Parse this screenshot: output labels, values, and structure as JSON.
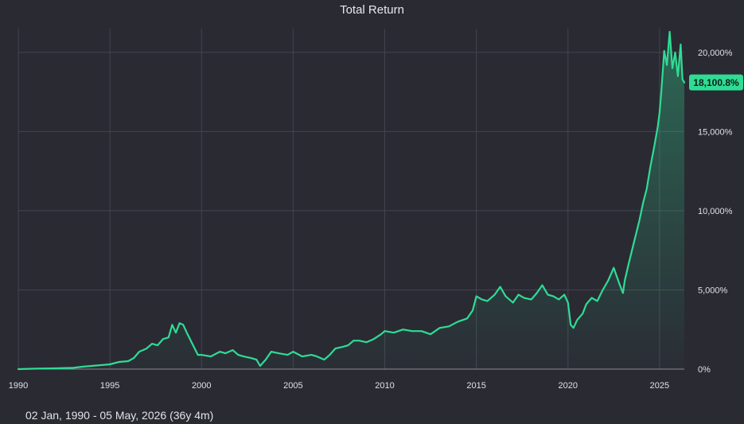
{
  "chart_data": {
    "type": "area",
    "title": "Total Return",
    "xlabel": "",
    "ylabel": "",
    "x_ticks": [
      "1990",
      "1995",
      "2000",
      "2005",
      "2010",
      "2015",
      "2020",
      "2025"
    ],
    "y_ticks": [
      "0%",
      "5,000%",
      "10,000%",
      "15,000%",
      "20,000%"
    ],
    "xlim": [
      1990.0,
      2026.35
    ],
    "ylim": [
      0,
      21500
    ],
    "grid": true,
    "last_value_label": "18,100.8%",
    "line_color": "#2fdc94",
    "series": [
      {
        "x": [
          1990.0,
          1991.0,
          1992.0,
          1993.0,
          1993.5,
          1994.0,
          1995.0,
          1995.5,
          1996.0,
          1996.3,
          1996.6,
          1997.0,
          1997.3,
          1997.6,
          1997.9,
          1998.2,
          1998.4,
          1998.6,
          1998.8,
          1999.0,
          1999.2,
          1999.5,
          1999.8,
          2000.0,
          2000.5,
          2001.0,
          2001.3,
          2001.7,
          2002.0,
          2002.3,
          2002.7,
          2003.0,
          2003.2,
          2003.5,
          2003.8,
          2004.2,
          2004.7,
          2005.0,
          2005.5,
          2006.0,
          2006.3,
          2006.7,
          2007.0,
          2007.3,
          2007.7,
          2008.0,
          2008.3,
          2008.6,
          2009.0,
          2009.4,
          2009.8,
          2010.0,
          2010.5,
          2011.0,
          2011.5,
          2012.0,
          2012.5,
          2013.0,
          2013.5,
          2014.0,
          2014.5,
          2014.8,
          2015.0,
          2015.3,
          2015.6,
          2016.0,
          2016.3,
          2016.6,
          2017.0,
          2017.3,
          2017.6,
          2018.0,
          2018.3,
          2018.6,
          2018.9,
          2019.2,
          2019.5,
          2019.8,
          2020.0,
          2020.15,
          2020.3,
          2020.5,
          2020.8,
          2021.0,
          2021.3,
          2021.6,
          2021.9,
          2022.2,
          2022.5,
          2022.8,
          2023.0,
          2023.1,
          2023.3,
          2023.6,
          2023.9,
          2024.1,
          2024.3,
          2024.5,
          2024.7,
          2024.9,
          2025.0,
          2025.1,
          2025.25,
          2025.4,
          2025.55,
          2025.7,
          2025.85,
          2026.0,
          2026.15,
          2026.25,
          2026.35
        ],
        "values": [
          0,
          30,
          50,
          80,
          150,
          200,
          300,
          450,
          500,
          700,
          1100,
          1300,
          1600,
          1500,
          1900,
          2000,
          2800,
          2300,
          2900,
          2800,
          2300,
          1600,
          900,
          900,
          800,
          1100,
          1000,
          1200,
          900,
          800,
          700,
          600,
          200,
          600,
          1100,
          1000,
          900,
          1100,
          800,
          900,
          800,
          600,
          900,
          1300,
          1400,
          1500,
          1800,
          1800,
          1700,
          1900,
          2200,
          2400,
          2300,
          2500,
          2400,
          2400,
          2200,
          2600,
          2700,
          3000,
          3200,
          3700,
          4600,
          4400,
          4300,
          4700,
          5200,
          4600,
          4200,
          4700,
          4500,
          4400,
          4800,
          5300,
          4700,
          4600,
          4400,
          4700,
          4200,
          2800,
          2600,
          3100,
          3500,
          4100,
          4500,
          4300,
          5000,
          5600,
          6400,
          5400,
          4800,
          5600,
          6600,
          8000,
          9400,
          10500,
          11400,
          12800,
          14000,
          15300,
          16200,
          17600,
          20100,
          19200,
          21300,
          19000,
          20000,
          18500,
          20500,
          18300,
          18100
        ]
      }
    ]
  },
  "footer": {
    "date_range": "02 Jan, 1990 - 05 May, 2026 (36y 4m)"
  }
}
